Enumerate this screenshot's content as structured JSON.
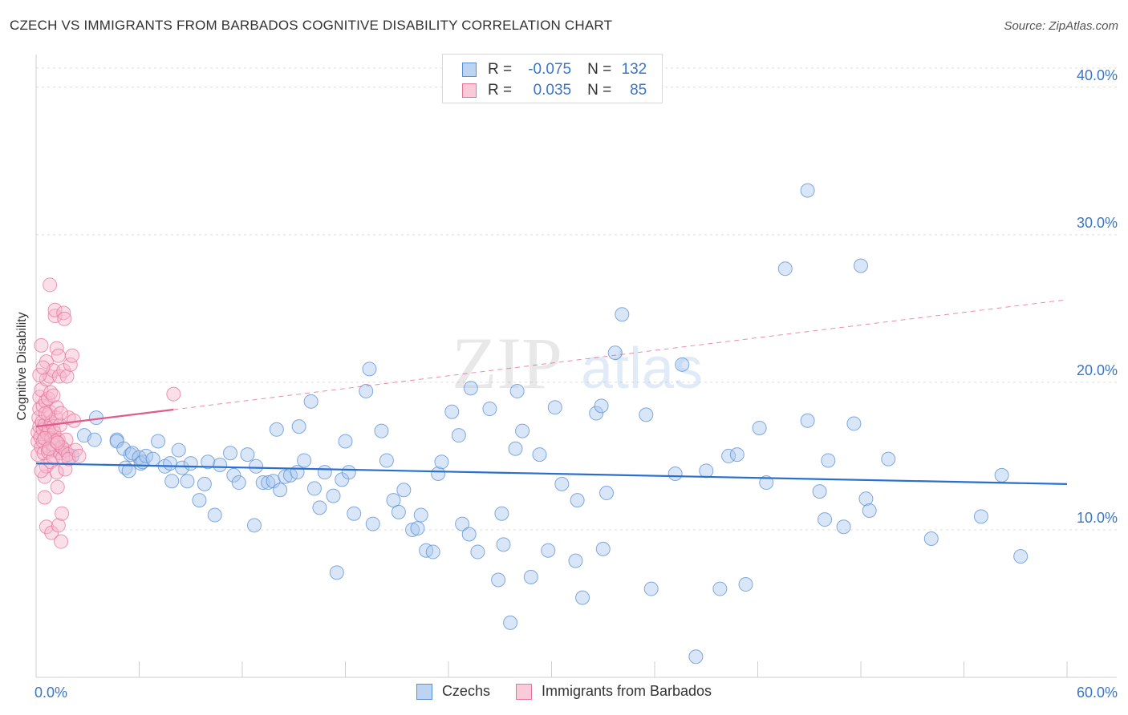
{
  "header": {
    "title": "CZECH VS IMMIGRANTS FROM BARBADOS COGNITIVE DISABILITY CORRELATION CHART",
    "source": "Source: ZipAtlas.com"
  },
  "legend_top": {
    "rows": [
      {
        "r_label": "R =",
        "r_value": "-0.075",
        "n_label": "N =",
        "n_value": "132"
      },
      {
        "r_label": "R =",
        "r_value": "0.035",
        "n_label": "N =",
        "n_value": "85"
      }
    ]
  },
  "watermark": {
    "zip": "ZIP",
    "atlas": "atlas"
  },
  "colors": {
    "czech_fill": "#a8c8f0",
    "czech_stroke": "#5b8fd4",
    "czech_line": "#2a6fcf",
    "barb_fill": "#f6b8cb",
    "barb_stroke": "#e8749a",
    "barb_line": "#e05b8b",
    "tick_label": "#3a76c6",
    "grid": "#dcdcdc"
  },
  "chart_data": {
    "type": "scatter",
    "title": "CZECH VS IMMIGRANTS FROM BARBADOS COGNITIVE DISABILITY CORRELATION CHART",
    "xlabel": "",
    "ylabel": "Cognitive Disability",
    "xlim": [
      0,
      60
    ],
    "ylim": [
      0,
      42
    ],
    "x_tick_labels": [
      "0.0%",
      "60.0%"
    ],
    "y_ticks": [
      10,
      20,
      30,
      40
    ],
    "y_tick_labels": [
      "10.0%",
      "20.0%",
      "30.0%",
      "40.0%"
    ],
    "grid": true,
    "legend_placement": "top-center",
    "series": [
      {
        "name": "Czechs",
        "r": -0.075,
        "n": 132,
        "trend": {
          "x": [
            0,
            60
          ],
          "y": [
            14.5,
            13.1
          ],
          "style": "solid"
        },
        "points": [
          [
            1.0,
            15.4
          ],
          [
            1.5,
            15.6
          ],
          [
            2.1,
            15.0
          ],
          [
            2.8,
            16.4
          ],
          [
            3.4,
            16.1
          ],
          [
            3.5,
            17.6
          ],
          [
            4.7,
            16.1
          ],
          [
            4.7,
            16.0
          ],
          [
            5.1,
            15.5
          ],
          [
            5.2,
            14.2
          ],
          [
            5.4,
            14.0
          ],
          [
            5.5,
            15.1
          ],
          [
            5.6,
            15.2
          ],
          [
            6.0,
            14.9
          ],
          [
            6.1,
            14.5
          ],
          [
            6.2,
            14.6
          ],
          [
            6.4,
            15.0
          ],
          [
            6.8,
            14.8
          ],
          [
            7.1,
            16.0
          ],
          [
            7.5,
            14.3
          ],
          [
            7.8,
            14.5
          ],
          [
            7.9,
            13.3
          ],
          [
            8.3,
            15.4
          ],
          [
            8.5,
            14.2
          ],
          [
            8.8,
            13.3
          ],
          [
            9.0,
            14.5
          ],
          [
            9.5,
            12.0
          ],
          [
            9.8,
            13.1
          ],
          [
            10.0,
            14.6
          ],
          [
            10.4,
            11.0
          ],
          [
            10.7,
            14.4
          ],
          [
            11.3,
            15.2
          ],
          [
            11.5,
            13.7
          ],
          [
            11.8,
            13.2
          ],
          [
            12.3,
            15.1
          ],
          [
            12.7,
            10.3
          ],
          [
            12.8,
            14.3
          ],
          [
            13.2,
            13.2
          ],
          [
            13.5,
            13.2
          ],
          [
            13.8,
            13.3
          ],
          [
            14.0,
            16.8
          ],
          [
            14.2,
            12.7
          ],
          [
            14.5,
            13.6
          ],
          [
            14.8,
            13.7
          ],
          [
            15.2,
            13.9
          ],
          [
            15.3,
            17.0
          ],
          [
            15.6,
            14.7
          ],
          [
            16.0,
            18.7
          ],
          [
            16.2,
            12.8
          ],
          [
            16.5,
            11.5
          ],
          [
            16.8,
            13.9
          ],
          [
            17.3,
            12.3
          ],
          [
            17.5,
            7.1
          ],
          [
            17.8,
            13.4
          ],
          [
            18.0,
            16.0
          ],
          [
            18.2,
            13.9
          ],
          [
            18.5,
            11.1
          ],
          [
            19.2,
            19.4
          ],
          [
            19.4,
            20.9
          ],
          [
            19.6,
            10.4
          ],
          [
            20.1,
            16.7
          ],
          [
            20.4,
            14.7
          ],
          [
            20.8,
            12.0
          ],
          [
            21.1,
            11.2
          ],
          [
            21.4,
            12.7
          ],
          [
            21.9,
            10.0
          ],
          [
            22.2,
            10.1
          ],
          [
            22.4,
            11.0
          ],
          [
            22.7,
            8.6
          ],
          [
            23.1,
            8.5
          ],
          [
            23.4,
            13.8
          ],
          [
            23.6,
            14.6
          ],
          [
            24.2,
            18.0
          ],
          [
            24.6,
            16.4
          ],
          [
            24.8,
            10.4
          ],
          [
            25.2,
            9.7
          ],
          [
            25.3,
            19.6
          ],
          [
            25.7,
            8.5
          ],
          [
            26.4,
            18.2
          ],
          [
            26.9,
            6.6
          ],
          [
            27.1,
            11.1
          ],
          [
            27.2,
            9.0
          ],
          [
            27.6,
            3.7
          ],
          [
            27.9,
            15.5
          ],
          [
            28.0,
            19.4
          ],
          [
            28.3,
            16.7
          ],
          [
            28.8,
            6.8
          ],
          [
            29.3,
            15.1
          ],
          [
            29.8,
            8.6
          ],
          [
            30.2,
            18.3
          ],
          [
            30.6,
            13.1
          ],
          [
            31.4,
            7.9
          ],
          [
            31.5,
            12.0
          ],
          [
            31.8,
            5.4
          ],
          [
            32.6,
            17.9
          ],
          [
            32.9,
            18.4
          ],
          [
            33.0,
            8.7
          ],
          [
            33.2,
            12.5
          ],
          [
            33.7,
            22.0
          ],
          [
            34.1,
            24.6
          ],
          [
            35.5,
            17.8
          ],
          [
            35.8,
            6.0
          ],
          [
            37.2,
            13.8
          ],
          [
            37.6,
            21.2
          ],
          [
            38.4,
            1.4
          ],
          [
            39.0,
            14.0
          ],
          [
            39.8,
            6.0
          ],
          [
            40.3,
            15.0
          ],
          [
            40.8,
            15.1
          ],
          [
            41.3,
            6.3
          ],
          [
            42.1,
            16.9
          ],
          [
            42.5,
            13.2
          ],
          [
            43.6,
            27.7
          ],
          [
            44.9,
            33.0
          ],
          [
            44.9,
            17.4
          ],
          [
            45.6,
            12.6
          ],
          [
            45.9,
            10.7
          ],
          [
            46.1,
            14.7
          ],
          [
            47.0,
            10.2
          ],
          [
            47.6,
            17.2
          ],
          [
            48.0,
            27.9
          ],
          [
            48.3,
            12.1
          ],
          [
            48.5,
            11.3
          ],
          [
            49.6,
            14.8
          ],
          [
            52.1,
            9.4
          ],
          [
            55.0,
            10.9
          ],
          [
            56.2,
            13.7
          ],
          [
            57.3,
            8.2
          ]
        ]
      },
      {
        "name": "Immigrants from Barbados",
        "r": 0.035,
        "n": 85,
        "trend": {
          "x": [
            0,
            60
          ],
          "y": [
            17.0,
            25.6
          ],
          "solid_until_x": 8.0
        },
        "points": [
          [
            0.1,
            15.1
          ],
          [
            0.1,
            16.0
          ],
          [
            0.1,
            16.6
          ],
          [
            0.15,
            17.6
          ],
          [
            0.2,
            18.2
          ],
          [
            0.2,
            19.0
          ],
          [
            0.2,
            17.0
          ],
          [
            0.25,
            16.3
          ],
          [
            0.3,
            22.5
          ],
          [
            0.3,
            19.5
          ],
          [
            0.3,
            15.6
          ],
          [
            0.35,
            17.3
          ],
          [
            0.4,
            18.4
          ],
          [
            0.4,
            16.8
          ],
          [
            0.4,
            16.0
          ],
          [
            0.45,
            15.2
          ],
          [
            0.5,
            12.2
          ],
          [
            0.5,
            13.6
          ],
          [
            0.5,
            17.1
          ],
          [
            0.55,
            18.7
          ],
          [
            0.6,
            10.2
          ],
          [
            0.6,
            14.3
          ],
          [
            0.6,
            20.2
          ],
          [
            0.6,
            21.4
          ],
          [
            0.65,
            16.5
          ],
          [
            0.7,
            17.8
          ],
          [
            0.7,
            15.3
          ],
          [
            0.75,
            16.9
          ],
          [
            0.8,
            20.4
          ],
          [
            0.8,
            26.6
          ],
          [
            0.8,
            18.0
          ],
          [
            0.85,
            14.6
          ],
          [
            0.9,
            16.2
          ],
          [
            0.9,
            9.8
          ],
          [
            0.9,
            17.3
          ],
          [
            0.95,
            15.8
          ],
          [
            1.0,
            20.8
          ],
          [
            1.0,
            17.0
          ],
          [
            1.0,
            14.9
          ],
          [
            1.05,
            16.6
          ],
          [
            1.1,
            24.5
          ],
          [
            1.1,
            24.9
          ],
          [
            1.15,
            17.6
          ],
          [
            1.2,
            13.9
          ],
          [
            1.2,
            22.3
          ],
          [
            1.2,
            18.3
          ],
          [
            1.25,
            12.9
          ],
          [
            1.3,
            16.1
          ],
          [
            1.3,
            10.3
          ],
          [
            1.3,
            21.8
          ],
          [
            1.35,
            20.4
          ],
          [
            1.4,
            15.2
          ],
          [
            1.4,
            17.1
          ],
          [
            1.45,
            9.2
          ],
          [
            1.5,
            11.1
          ],
          [
            1.5,
            15.6
          ],
          [
            1.55,
            14.9
          ],
          [
            1.6,
            20.8
          ],
          [
            1.6,
            24.7
          ],
          [
            1.65,
            24.3
          ],
          [
            1.7,
            14.1
          ],
          [
            1.7,
            15.4
          ],
          [
            1.75,
            16.1
          ],
          [
            1.8,
            20.4
          ],
          [
            1.85,
            15.1
          ],
          [
            1.9,
            17.6
          ],
          [
            1.9,
            14.8
          ],
          [
            2.0,
            21.2
          ],
          [
            2.1,
            21.8
          ],
          [
            2.2,
            17.4
          ],
          [
            2.3,
            15.4
          ],
          [
            2.5,
            15.0
          ],
          [
            0.2,
            20.5
          ],
          [
            0.4,
            21.0
          ],
          [
            0.55,
            17.9
          ],
          [
            0.7,
            18.9
          ],
          [
            0.85,
            19.3
          ],
          [
            1.0,
            19.1
          ],
          [
            1.15,
            16.0
          ],
          [
            0.3,
            14.0
          ],
          [
            0.5,
            16.2
          ],
          [
            0.75,
            15.5
          ],
          [
            1.25,
            15.9
          ],
          [
            1.45,
            17.9
          ],
          [
            8.0,
            19.2
          ]
        ]
      }
    ]
  }
}
